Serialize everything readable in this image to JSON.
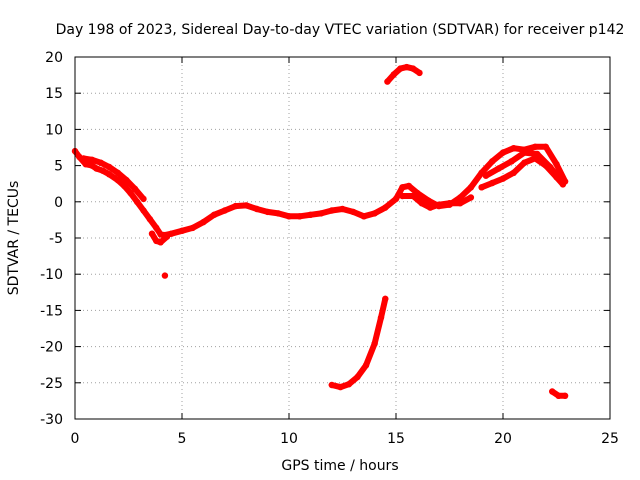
{
  "chart_data": {
    "type": "scatter",
    "title": "Day 198 of 2023, Sidereal Day-to-day VTEC variation (SDTVAR) for receiver p142",
    "xlabel": "GPS time / hours",
    "ylabel": "SDTVAR / TECUs",
    "xlim": [
      0,
      25
    ],
    "ylim": [
      -30,
      20
    ],
    "xticks": [
      0,
      5,
      10,
      15,
      20,
      25
    ],
    "yticks": [
      -30,
      -25,
      -20,
      -15,
      -10,
      -5,
      0,
      5,
      10,
      15,
      20
    ],
    "grid": true,
    "color": "#ff0000",
    "series": [
      {
        "name": "main-trace",
        "points": [
          [
            0.0,
            7.0
          ],
          [
            0.2,
            6.2
          ],
          [
            0.5,
            5.2
          ],
          [
            0.8,
            5.0
          ],
          [
            1.0,
            4.6
          ],
          [
            1.3,
            4.3
          ],
          [
            1.6,
            3.8
          ],
          [
            2.0,
            3.0
          ],
          [
            2.3,
            2.2
          ],
          [
            2.6,
            1.2
          ],
          [
            2.9,
            0.0
          ],
          [
            3.2,
            -1.2
          ],
          [
            3.5,
            -2.4
          ],
          [
            3.8,
            -3.6
          ],
          [
            4.0,
            -4.5
          ],
          [
            4.2,
            -4.6
          ],
          [
            4.5,
            -4.4
          ],
          [
            5.0,
            -4.0
          ],
          [
            5.5,
            -3.6
          ],
          [
            6.0,
            -2.8
          ],
          [
            6.5,
            -1.8
          ],
          [
            7.0,
            -1.2
          ],
          [
            7.5,
            -0.6
          ],
          [
            8.0,
            -0.5
          ],
          [
            8.5,
            -1.0
          ],
          [
            9.0,
            -1.4
          ],
          [
            9.5,
            -1.6
          ],
          [
            10.0,
            -2.0
          ],
          [
            10.5,
            -2.0
          ],
          [
            11.0,
            -1.8
          ],
          [
            11.5,
            -1.6
          ],
          [
            12.0,
            -1.2
          ],
          [
            12.5,
            -1.0
          ],
          [
            13.0,
            -1.4
          ],
          [
            13.5,
            -2.0
          ],
          [
            14.0,
            -1.6
          ],
          [
            14.5,
            -0.8
          ],
          [
            15.0,
            0.4
          ],
          [
            15.3,
            2.0
          ],
          [
            15.6,
            2.2
          ],
          [
            16.0,
            1.2
          ],
          [
            16.5,
            0.2
          ],
          [
            17.0,
            -0.6
          ],
          [
            17.5,
            -0.4
          ],
          [
            18.0,
            0.6
          ],
          [
            18.5,
            2.0
          ],
          [
            19.0,
            4.0
          ],
          [
            19.5,
            5.6
          ],
          [
            20.0,
            6.8
          ],
          [
            20.5,
            7.4
          ],
          [
            21.0,
            7.2
          ],
          [
            21.5,
            7.6
          ],
          [
            22.0,
            7.6
          ],
          [
            22.5,
            5.2
          ],
          [
            22.9,
            2.8
          ]
        ]
      },
      {
        "name": "upper-band",
        "points": [
          [
            0.4,
            6.0
          ],
          [
            0.8,
            5.8
          ],
          [
            1.2,
            5.4
          ],
          [
            1.6,
            4.8
          ],
          [
            2.0,
            4.0
          ],
          [
            2.4,
            3.0
          ],
          [
            2.8,
            1.8
          ],
          [
            3.2,
            0.4
          ]
        ]
      },
      {
        "name": "lower-band-right",
        "points": [
          [
            19.0,
            2.0
          ],
          [
            19.5,
            2.6
          ],
          [
            20.0,
            3.2
          ],
          [
            20.5,
            4.0
          ],
          [
            21.0,
            5.4
          ],
          [
            21.5,
            6.0
          ],
          [
            22.0,
            5.0
          ],
          [
            22.5,
            3.4
          ],
          [
            22.8,
            2.4
          ]
        ]
      },
      {
        "name": "middle-band-right",
        "points": [
          [
            19.2,
            3.6
          ],
          [
            19.8,
            4.6
          ],
          [
            20.4,
            5.6
          ],
          [
            21.0,
            6.8
          ],
          [
            21.6,
            6.6
          ],
          [
            22.2,
            4.8
          ],
          [
            22.8,
            2.6
          ]
        ]
      },
      {
        "name": "lower-band-mid",
        "points": [
          [
            15.3,
            0.8
          ],
          [
            15.8,
            0.8
          ],
          [
            16.2,
            -0.2
          ],
          [
            16.6,
            -0.8
          ],
          [
            17.0,
            -0.4
          ],
          [
            17.5,
            -0.2
          ],
          [
            18.0,
            -0.2
          ],
          [
            18.5,
            0.6
          ]
        ]
      },
      {
        "name": "dip-band",
        "points": [
          [
            3.6,
            -4.4
          ],
          [
            3.8,
            -5.4
          ],
          [
            4.0,
            -5.6
          ],
          [
            4.3,
            -4.8
          ]
        ]
      },
      {
        "name": "rising-arc",
        "points": [
          [
            12.0,
            -25.3
          ],
          [
            12.4,
            -25.6
          ],
          [
            12.8,
            -25.2
          ],
          [
            13.2,
            -24.2
          ],
          [
            13.6,
            -22.6
          ],
          [
            14.0,
            -19.6
          ],
          [
            14.3,
            -16.0
          ],
          [
            14.5,
            -13.4
          ]
        ]
      },
      {
        "name": "high-arc",
        "points": [
          [
            14.6,
            16.6
          ],
          [
            14.9,
            17.6
          ],
          [
            15.2,
            18.4
          ],
          [
            15.5,
            18.6
          ],
          [
            15.8,
            18.4
          ],
          [
            16.1,
            17.8
          ]
        ]
      },
      {
        "name": "isolated-point",
        "points": [
          [
            4.2,
            -10.2
          ]
        ]
      },
      {
        "name": "tail-right",
        "points": [
          [
            22.3,
            -26.2
          ],
          [
            22.6,
            -26.8
          ],
          [
            22.9,
            -26.8
          ]
        ]
      }
    ]
  }
}
